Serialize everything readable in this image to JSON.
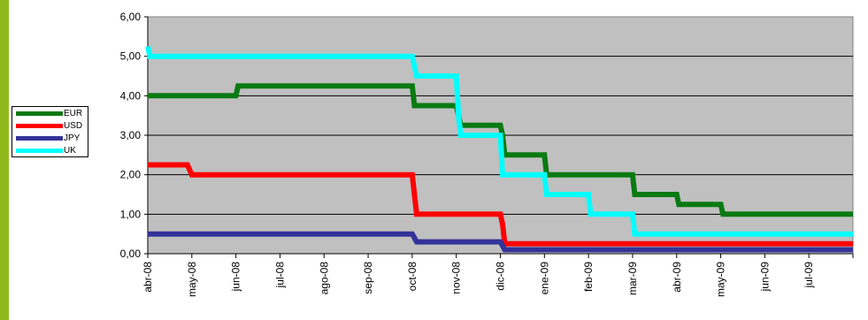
{
  "colors": {
    "EUR": "#0a7a12",
    "USD": "#ff0000",
    "JPY": "#333399",
    "UK": "#00ffff",
    "plot_bg": "#c0c0c0",
    "side_bar": "#8fba1a"
  },
  "chart_data": {
    "type": "line",
    "x_range": [
      0,
      16
    ],
    "ylim": [
      0,
      6
    ],
    "grid": true,
    "legend_position": "left",
    "y_ticks": [
      "0,00",
      "1,00",
      "2,00",
      "3,00",
      "4,00",
      "5,00",
      "6,00"
    ],
    "x_ticks": [
      "abr-08",
      "may-08",
      "jun-08",
      "jul-08",
      "ago-08",
      "sep-08",
      "oct-08",
      "nov-08",
      "dic-08",
      "ene-09",
      "feb-09",
      "mar-09",
      "abr-09",
      "may-09",
      "jun-09",
      "jul-09"
    ],
    "series": [
      {
        "name": "EUR",
        "points": [
          [
            0,
            4.0
          ],
          [
            2.0,
            4.0
          ],
          [
            2.05,
            4.25
          ],
          [
            6.0,
            4.25
          ],
          [
            6.05,
            3.75
          ],
          [
            7.0,
            3.75
          ],
          [
            7.1,
            3.25
          ],
          [
            8.0,
            3.25
          ],
          [
            8.05,
            3.0
          ],
          [
            8.1,
            2.5
          ],
          [
            9.0,
            2.5
          ],
          [
            9.05,
            2.0
          ],
          [
            11.0,
            2.0
          ],
          [
            11.05,
            1.5
          ],
          [
            12.0,
            1.5
          ],
          [
            12.05,
            1.25
          ],
          [
            13.0,
            1.25
          ],
          [
            13.05,
            1.0
          ],
          [
            16,
            1.0
          ]
        ]
      },
      {
        "name": "USD",
        "points": [
          [
            0,
            2.25
          ],
          [
            0.9,
            2.25
          ],
          [
            1.0,
            2.0
          ],
          [
            6.0,
            2.0
          ],
          [
            6.05,
            1.5
          ],
          [
            6.1,
            1.0
          ],
          [
            8.0,
            1.0
          ],
          [
            8.05,
            0.75
          ],
          [
            8.1,
            0.25
          ],
          [
            16,
            0.25
          ]
        ]
      },
      {
        "name": "JPY",
        "points": [
          [
            0,
            0.5
          ],
          [
            6.0,
            0.5
          ],
          [
            6.05,
            0.4
          ],
          [
            6.1,
            0.3
          ],
          [
            8.0,
            0.3
          ],
          [
            8.05,
            0.2
          ],
          [
            8.1,
            0.1
          ],
          [
            16,
            0.1
          ]
        ]
      },
      {
        "name": "UK",
        "points": [
          [
            0,
            5.25
          ],
          [
            0.05,
            5.0
          ],
          [
            6.0,
            5.0
          ],
          [
            6.05,
            4.75
          ],
          [
            6.1,
            4.5
          ],
          [
            7.0,
            4.5
          ],
          [
            7.05,
            3.5
          ],
          [
            7.1,
            3.0
          ],
          [
            8.0,
            3.0
          ],
          [
            8.05,
            2.0
          ],
          [
            9.0,
            2.0
          ],
          [
            9.05,
            1.5
          ],
          [
            10.0,
            1.5
          ],
          [
            10.05,
            1.0
          ],
          [
            11.0,
            1.0
          ],
          [
            11.05,
            0.5
          ],
          [
            16,
            0.5
          ]
        ]
      }
    ]
  }
}
